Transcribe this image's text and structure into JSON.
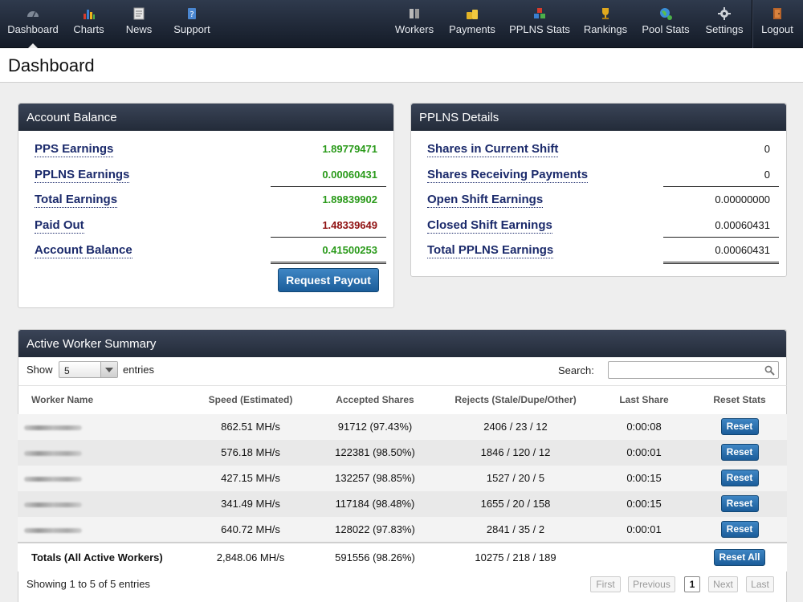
{
  "nav": {
    "left": [
      {
        "label": "Dashboard",
        "icon": "dashboard-icon",
        "active": true
      },
      {
        "label": "Charts",
        "icon": "bar-chart-icon"
      },
      {
        "label": "News",
        "icon": "news-icon"
      },
      {
        "label": "Support",
        "icon": "support-icon"
      }
    ],
    "right": [
      {
        "label": "Workers",
        "icon": "workers-icon"
      },
      {
        "label": "Payments",
        "icon": "coins-icon"
      },
      {
        "label": "PPLNS Stats",
        "icon": "blocks-icon"
      },
      {
        "label": "Rankings",
        "icon": "trophy-icon"
      },
      {
        "label": "Pool Stats",
        "icon": "globe-icon"
      },
      {
        "label": "Settings",
        "icon": "gear-icon"
      },
      {
        "label": "Logout",
        "icon": "door-icon"
      }
    ]
  },
  "page": {
    "title": "Dashboard"
  },
  "account_balance": {
    "title": "Account Balance",
    "rows": [
      {
        "label": "PPS Earnings",
        "value": "1.89779471",
        "color": "#2a9a1a"
      },
      {
        "label": "PPLNS Earnings",
        "value": "0.00060431",
        "color": "#2a9a1a"
      },
      {
        "label": "Total Earnings",
        "value": "1.89839902",
        "color": "#2a9a1a"
      },
      {
        "label": "Paid Out",
        "value": "1.48339649",
        "color": "#8f1010"
      },
      {
        "label": "Account Balance",
        "value": "0.41500253",
        "color": "#2a9a1a"
      }
    ],
    "button": "Request Payout"
  },
  "pplns": {
    "title": "PPLNS Details",
    "rows": [
      {
        "label": "Shares in Current Shift",
        "value": "0"
      },
      {
        "label": "Shares Receiving Payments",
        "value": "0"
      },
      {
        "label": "Open Shift Earnings",
        "value": "0.00000000"
      },
      {
        "label": "Closed Shift Earnings",
        "value": "0.00060431"
      },
      {
        "label": "Total PPLNS Earnings",
        "value": "0.00060431"
      }
    ]
  },
  "workers": {
    "title": "Active Worker Summary",
    "show_label": "Show",
    "show_value": "5",
    "entries_label": "entries",
    "search_label": "Search:",
    "search_value": "",
    "columns": [
      "Worker Name",
      "Speed (Estimated)",
      "Accepted Shares",
      "Rejects (Stale/Dupe/Other)",
      "Last Share",
      "Reset Stats"
    ],
    "rows": [
      {
        "speed": "862.51 MH/s",
        "accepted": "91712 (97.43%)",
        "rejects": "2406 / 23 / 12",
        "rejects_link": false,
        "last": "0:00:08",
        "reset": "Reset"
      },
      {
        "speed": "576.18 MH/s",
        "accepted": "122381 (98.50%)",
        "rejects": "1846 / 120 / 12",
        "rejects_link": true,
        "last": "0:00:01",
        "reset": "Reset"
      },
      {
        "speed": "427.15 MH/s",
        "accepted": "132257 (98.85%)",
        "rejects": "1527 / 20 / 5",
        "rejects_link": false,
        "last": "0:00:15",
        "reset": "Reset"
      },
      {
        "speed": "341.49 MH/s",
        "accepted": "117184 (98.48%)",
        "rejects": "1655 / 20 / 158",
        "rejects_link": true,
        "last": "0:00:15",
        "reset": "Reset"
      },
      {
        "speed": "640.72 MH/s",
        "accepted": "128022 (97.83%)",
        "rejects": "2841 / 35 / 2",
        "rejects_link": false,
        "last": "0:00:01",
        "reset": "Reset"
      }
    ],
    "totals": {
      "label": "Totals (All Active Workers)",
      "speed": "2,848.06 MH/s",
      "accepted": "591556 (98.26%)",
      "rejects": "10275 / 218 / 189",
      "reset_all": "Reset All"
    },
    "info": "Showing 1 to 5 of 5 entries",
    "pager": {
      "first": "First",
      "previous": "Previous",
      "page": "1",
      "next": "Next",
      "last": "Last"
    }
  }
}
